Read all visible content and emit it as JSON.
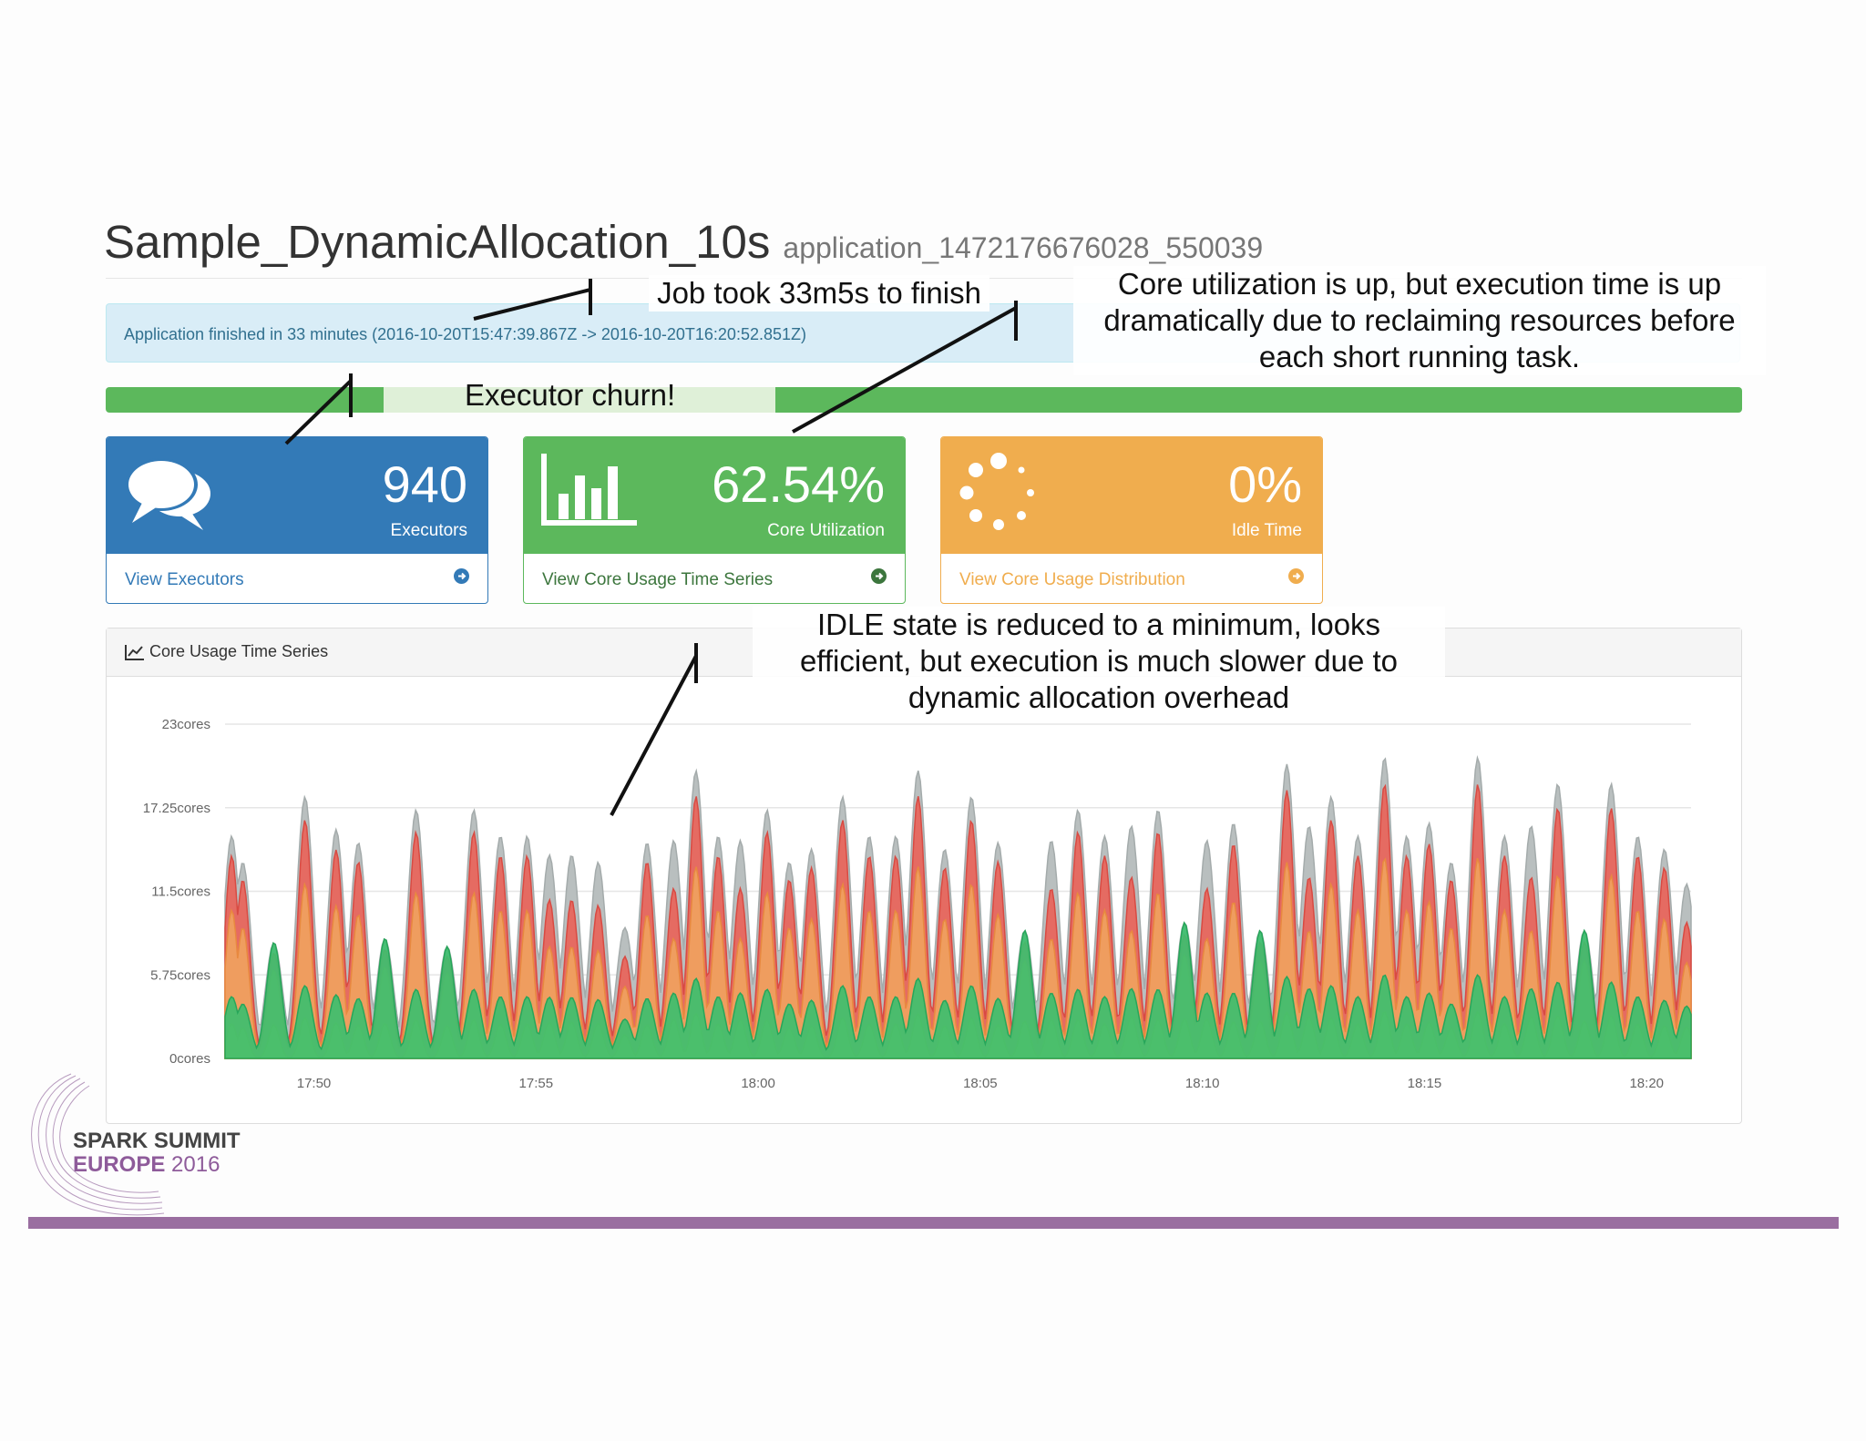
{
  "header": {
    "app_name": "Sample_DynamicAllocation_10s",
    "app_id": "application_1472176676028_550039"
  },
  "alert": {
    "text": "Application finished in 33 minutes (2016-10-20T15:47:39.867Z -> 2016-10-20T16:20:52.851Z)"
  },
  "progress": {
    "segments": [
      {
        "state": "active",
        "color": "#5cb85c"
      },
      {
        "state": "churn",
        "color": "#dff0d8"
      },
      {
        "state": "active",
        "color": "#5cb85c"
      }
    ]
  },
  "panels": {
    "executors": {
      "value": "940",
      "caption": "Executors",
      "link": "View Executors",
      "icon": "comments-icon",
      "color": "#337ab7"
    },
    "core": {
      "value": "62.54%",
      "caption": "Core Utilization",
      "link": "View Core Usage Time Series",
      "icon": "bar-chart-icon",
      "color": "#5cb85c"
    },
    "idle": {
      "value": "0%",
      "caption": "Idle Time",
      "link": "View Core Usage Distribution",
      "icon": "spinner-icon",
      "color": "#f0ad4e"
    }
  },
  "chart_panel": {
    "heading": "Core Usage Time Series",
    "icon": "line-chart-icon"
  },
  "chart_data": {
    "type": "area",
    "y_tick_labels": [
      "0cores",
      "5.75cores",
      "11.5cores",
      "17.25cores",
      "23cores"
    ],
    "x_tick_labels": [
      "17:50",
      "17:55",
      "18:00",
      "18:05",
      "18:10",
      "18:15",
      "18:20"
    ],
    "ylim": [
      0,
      23
    ],
    "x_range_minutes": [
      0,
      33
    ],
    "x_tick_minutes": [
      2,
      7,
      12,
      17,
      22,
      27,
      32
    ],
    "grid": true,
    "series_colors": [
      "#b9bfbf",
      "#e8645a",
      "#f0a25e",
      "#f2c64b",
      "#3dbf6f"
    ],
    "peaks": [
      {
        "t": 0.15,
        "h": 17,
        "k": 1
      },
      {
        "t": 0.4,
        "h": 15,
        "k": 1
      },
      {
        "t": 1.1,
        "h": 14.5,
        "k": 2
      },
      {
        "t": 1.8,
        "h": 20,
        "k": 1
      },
      {
        "t": 2.5,
        "h": 17.5,
        "k": 1
      },
      {
        "t": 3.0,
        "h": 16.5,
        "k": 1
      },
      {
        "t": 3.6,
        "h": 15,
        "k": 2
      },
      {
        "t": 4.3,
        "h": 19,
        "k": 1
      },
      {
        "t": 5.0,
        "h": 14,
        "k": 2
      },
      {
        "t": 5.6,
        "h": 19,
        "k": 1
      },
      {
        "t": 6.2,
        "h": 17,
        "k": 1
      },
      {
        "t": 6.8,
        "h": 17,
        "k": 1
      },
      {
        "t": 7.3,
        "h": 14,
        "k": 0
      },
      {
        "t": 7.8,
        "h": 14,
        "k": 0
      },
      {
        "t": 8.4,
        "h": 13.5,
        "k": 0
      },
      {
        "t": 9.0,
        "h": 9,
        "k": 0
      },
      {
        "t": 9.5,
        "h": 16.5,
        "k": 1
      },
      {
        "t": 10.1,
        "h": 15,
        "k": 0
      },
      {
        "t": 10.6,
        "h": 22,
        "k": 1
      },
      {
        "t": 11.1,
        "h": 17,
        "k": 1
      },
      {
        "t": 11.6,
        "h": 15,
        "k": 0
      },
      {
        "t": 12.2,
        "h": 19,
        "k": 1
      },
      {
        "t": 12.7,
        "h": 15,
        "k": 1
      },
      {
        "t": 13.2,
        "h": 16,
        "k": 1
      },
      {
        "t": 13.9,
        "h": 20,
        "k": 1
      },
      {
        "t": 14.5,
        "h": 17,
        "k": 1
      },
      {
        "t": 15.1,
        "h": 17,
        "k": 1
      },
      {
        "t": 15.6,
        "h": 22,
        "k": 1
      },
      {
        "t": 16.2,
        "h": 16,
        "k": 1
      },
      {
        "t": 16.8,
        "h": 20,
        "k": 1
      },
      {
        "t": 17.4,
        "h": 16.5,
        "k": 1
      },
      {
        "t": 18.0,
        "h": 16,
        "k": 2
      },
      {
        "t": 18.6,
        "h": 15,
        "k": 0
      },
      {
        "t": 19.2,
        "h": 19,
        "k": 1
      },
      {
        "t": 19.8,
        "h": 17,
        "k": 1
      },
      {
        "t": 20.4,
        "h": 16,
        "k": 0
      },
      {
        "t": 21.0,
        "h": 19,
        "k": 1
      },
      {
        "t": 21.6,
        "h": 17,
        "k": 2
      },
      {
        "t": 22.1,
        "h": 15,
        "k": 0
      },
      {
        "t": 22.7,
        "h": 18,
        "k": 1
      },
      {
        "t": 23.3,
        "h": 16,
        "k": 2
      },
      {
        "t": 23.9,
        "h": 22.5,
        "k": 1
      },
      {
        "t": 24.4,
        "h": 16,
        "k": 0
      },
      {
        "t": 24.9,
        "h": 20,
        "k": 1
      },
      {
        "t": 25.5,
        "h": 17,
        "k": 1
      },
      {
        "t": 26.1,
        "h": 23,
        "k": 1
      },
      {
        "t": 26.6,
        "h": 17,
        "k": 1
      },
      {
        "t": 27.1,
        "h": 18,
        "k": 1
      },
      {
        "t": 27.6,
        "h": 15,
        "k": 1
      },
      {
        "t": 28.2,
        "h": 23,
        "k": 1
      },
      {
        "t": 28.8,
        "h": 17,
        "k": 1
      },
      {
        "t": 29.4,
        "h": 16,
        "k": 0
      },
      {
        "t": 30.0,
        "h": 21,
        "k": 1
      },
      {
        "t": 30.6,
        "h": 16,
        "k": 2
      },
      {
        "t": 31.2,
        "h": 21,
        "k": 1
      },
      {
        "t": 31.8,
        "h": 17,
        "k": 1
      },
      {
        "t": 32.4,
        "h": 16,
        "k": 1
      },
      {
        "t": 32.9,
        "h": 12,
        "k": 0
      }
    ]
  },
  "annotations": {
    "job_time": "Job took 33m5s to finish",
    "churn": "Executor churn!",
    "core_line1": "Core utilization is up, but execution time is up",
    "core_line2": "dramatically due to reclaiming resources before",
    "core_line3": "each short running task.",
    "idle_line1": "IDLE state is reduced to a minimum, looks",
    "idle_line2": "efficient, but execution is much slower due to",
    "idle_line3": "dynamic allocation overhead"
  },
  "branding": {
    "name": "SPARK SUMMIT",
    "edition": "EUROPE",
    "year": "2016",
    "accent": "#9a6ea0"
  }
}
